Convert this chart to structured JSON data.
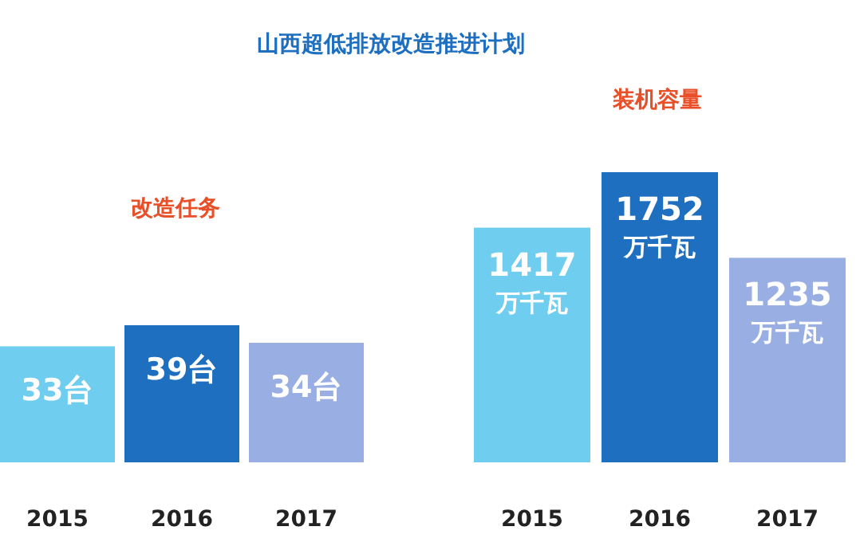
{
  "chart_data": [
    {
      "type": "bar",
      "title": "改造任务",
      "annotations": [
        "山西超低排放改造推进计划"
      ],
      "categories": [
        "2015",
        "2016",
        "2017"
      ],
      "values": [
        33,
        39,
        34
      ],
      "colors": [
        "#6fcdf0",
        "#1f6fc0",
        "#99aee2"
      ],
      "value_labels": [
        "33台",
        "39台",
        "34台"
      ]
    },
    {
      "type": "bar",
      "title": "装机容量",
      "categories": [
        "2015",
        "2016",
        "2017"
      ],
      "values": [
        1417,
        1752,
        1235
      ],
      "colors": [
        "#6fcdf0",
        "#1f6fc0",
        "#99aee2"
      ],
      "value_labels": [
        "1417万千瓦",
        "1752万千瓦",
        "1235万千瓦"
      ]
    }
  ]
}
